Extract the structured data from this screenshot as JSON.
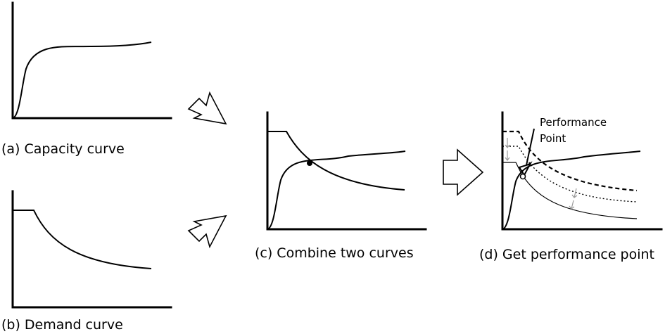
{
  "panels": {
    "a": {
      "caption": "(a) Capacity curve"
    },
    "b": {
      "caption": "(b) Demand curve"
    },
    "c": {
      "caption": "(c) Combine two curves"
    },
    "d": {
      "caption": "(d) Get performance point",
      "annotation": {
        "line1": "Performance",
        "line2": "Point"
      }
    }
  }
}
